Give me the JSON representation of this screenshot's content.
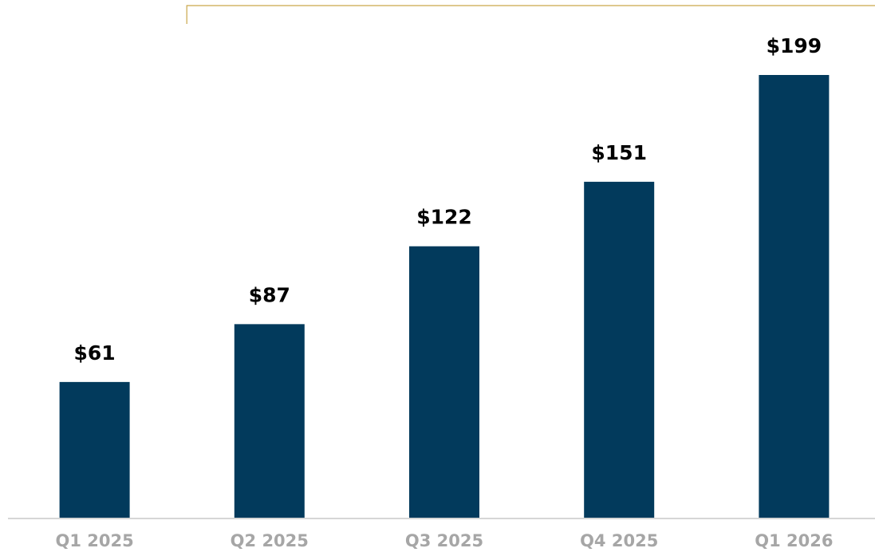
{
  "chart_data": {
    "type": "bar",
    "categories": [
      "Q1 2025",
      "Q2 2025",
      "Q3 2025",
      "Q4 2025",
      "Q1 2026"
    ],
    "values": [
      61,
      87,
      122,
      151,
      199
    ],
    "value_labels": [
      "$61",
      "$87",
      "$122",
      "$151",
      "$199"
    ],
    "title": "",
    "xlabel": "",
    "ylabel": "",
    "ylim": [
      0,
      205
    ],
    "grid": false,
    "legend": "none",
    "bracket_span": [
      "Q2 2025",
      "Q1 2026"
    ]
  },
  "colors": {
    "bar": "#023a5c",
    "tick_label": "#a6a6a6",
    "axis": "#c8c8c8",
    "bracket": "#c9a64a"
  }
}
